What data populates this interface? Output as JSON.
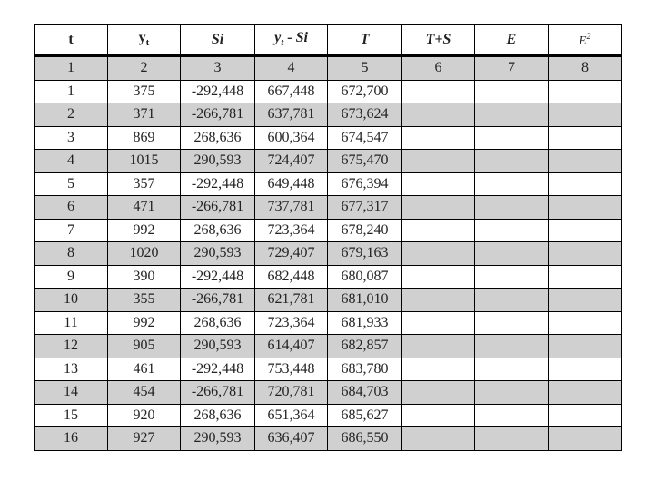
{
  "headers": {
    "t": "t",
    "y": "y",
    "y_sub": "t",
    "si": "Si",
    "yt_minus_si_y": "y",
    "yt_minus_si_sub": "t",
    "yt_minus_si_rest": " - Si",
    "T": "T",
    "TS": "T+S",
    "E": "E",
    "E2": "E",
    "E2_sup": "2"
  },
  "index_row": [
    "1",
    "2",
    "3",
    "4",
    "5",
    "6",
    "7",
    "8"
  ],
  "rows": [
    [
      "1",
      "375",
      "-292,448",
      "667,448",
      "672,700",
      "",
      "",
      ""
    ],
    [
      "2",
      "371",
      "-266,781",
      "637,781",
      "673,624",
      "",
      "",
      ""
    ],
    [
      "3",
      "869",
      "268,636",
      "600,364",
      "674,547",
      "",
      "",
      ""
    ],
    [
      "4",
      "1015",
      "290,593",
      "724,407",
      "675,470",
      "",
      "",
      ""
    ],
    [
      "5",
      "357",
      "-292,448",
      "649,448",
      "676,394",
      "",
      "",
      ""
    ],
    [
      "6",
      "471",
      "-266,781",
      "737,781",
      "677,317",
      "",
      "",
      ""
    ],
    [
      "7",
      "992",
      "268,636",
      "723,364",
      "678,240",
      "",
      "",
      ""
    ],
    [
      "8",
      "1020",
      "290,593",
      "729,407",
      "679,163",
      "",
      "",
      ""
    ],
    [
      "9",
      "390",
      "-292,448",
      "682,448",
      "680,087",
      "",
      "",
      ""
    ],
    [
      "10",
      "355",
      "-266,781",
      "621,781",
      "681,010",
      "",
      "",
      ""
    ],
    [
      "11",
      "992",
      "268,636",
      "723,364",
      "681,933",
      "",
      "",
      ""
    ],
    [
      "12",
      "905",
      "290,593",
      "614,407",
      "682,857",
      "",
      "",
      ""
    ],
    [
      "13",
      "461",
      "-292,448",
      "753,448",
      "683,780",
      "",
      "",
      ""
    ],
    [
      "14",
      "454",
      "-266,781",
      "720,781",
      "684,703",
      "",
      "",
      ""
    ],
    [
      "15",
      "920",
      "268,636",
      "651,364",
      "685,627",
      "",
      "",
      ""
    ],
    [
      "16",
      "927",
      "290,593",
      "636,407",
      "686,550",
      "",
      "",
      ""
    ]
  ],
  "colors": {
    "shaded_row": "#d0d0d0",
    "border": "#000000"
  }
}
